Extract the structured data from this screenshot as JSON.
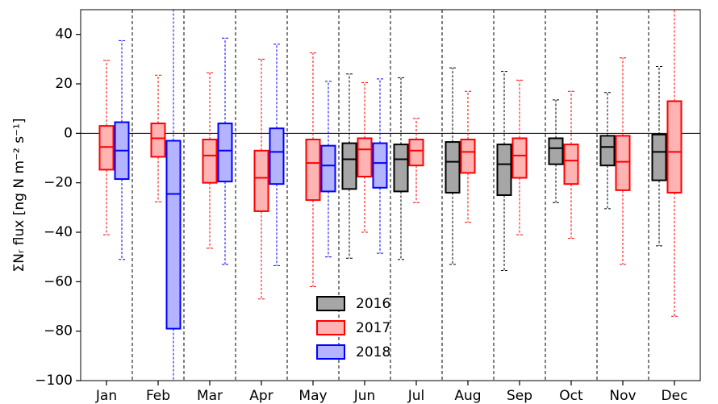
{
  "chart_data": {
    "type": "box",
    "ylabel": "ΣNᵣ flux [ng N m⁻² s⁻¹]",
    "categories": [
      "Jan",
      "Feb",
      "Mar",
      "Apr",
      "May",
      "Jun",
      "Jul",
      "Aug",
      "Sep",
      "Oct",
      "Nov",
      "Dec"
    ],
    "ylim": [
      -100,
      50
    ],
    "yticks": [
      {
        "value": -100,
        "label": "−100"
      },
      {
        "value": -80,
        "label": "−80"
      },
      {
        "value": -60,
        "label": "−60"
      },
      {
        "value": -40,
        "label": "−40"
      },
      {
        "value": -20,
        "label": "−20"
      },
      0,
      20,
      40
    ],
    "legend": "lower center",
    "series": [
      {
        "name": "2016",
        "color": "#000000",
        "fill": "#a6a6a6",
        "low": [
          null,
          null,
          null,
          null,
          null,
          -50.5,
          -51,
          -53,
          -55.5,
          -28,
          -30.5,
          -45.5
        ],
        "q1": [
          null,
          null,
          null,
          null,
          null,
          -22.5,
          -23.5,
          -24,
          -25,
          -12.5,
          -13,
          -19
        ],
        "median": [
          null,
          null,
          null,
          null,
          null,
          -10.5,
          -10.5,
          -11.5,
          -12.5,
          -6,
          -5.5,
          -7.5
        ],
        "q3": [
          null,
          null,
          null,
          null,
          null,
          -4,
          -4.5,
          -3.5,
          -4.5,
          -2,
          -1,
          -0.5
        ],
        "high": [
          null,
          null,
          null,
          null,
          null,
          24,
          22.5,
          26.5,
          25,
          13.5,
          16.5,
          27
        ]
      },
      {
        "name": "2017",
        "color": "#ff0000",
        "fill": "#ffb3b3",
        "low": [
          -41,
          -27.7,
          -46.5,
          -67,
          -62,
          -40,
          -28,
          -36,
          -41,
          -42.5,
          -53,
          -74
        ],
        "q1": [
          -14.7,
          -9.5,
          -20,
          -31.5,
          -27,
          -17.5,
          -13,
          -16,
          -18,
          -20.5,
          -23,
          -24
        ],
        "median": [
          -5.5,
          -2,
          -9,
          -18,
          -12,
          -6.5,
          -7,
          -7.5,
          -9,
          -11,
          -11.5,
          -7.5
        ],
        "q3": [
          3,
          4,
          -2.5,
          -7,
          -2.5,
          -2,
          -2.5,
          -2.5,
          -2,
          -4.5,
          -1,
          13
        ],
        "high": [
          29.5,
          23.5,
          24.5,
          30,
          32.5,
          20.5,
          6,
          17,
          21.5,
          17,
          30.5,
          55
        ]
      },
      {
        "name": "2018",
        "color": "#0000ff",
        "fill": "#b3b3ff",
        "low": [
          -51,
          -105,
          -53,
          -53.5,
          -50,
          -48.5,
          null,
          null,
          null,
          null,
          null,
          null
        ],
        "q1": [
          -18.5,
          -79,
          -19.5,
          -20.5,
          -23.5,
          -22,
          null,
          null,
          null,
          null,
          null,
          null
        ],
        "median": [
          -7,
          -24.5,
          -7,
          -7.5,
          -13,
          -12,
          null,
          null,
          null,
          null,
          null,
          null
        ],
        "q3": [
          4.5,
          -3,
          4,
          2,
          -5,
          -4,
          null,
          null,
          null,
          null,
          null,
          null
        ],
        "high": [
          37.5,
          55,
          38.5,
          36,
          21,
          22,
          null,
          null,
          null,
          null,
          null,
          null
        ]
      }
    ]
  }
}
